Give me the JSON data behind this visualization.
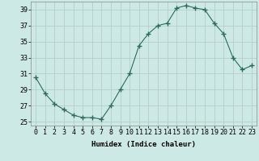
{
  "x": [
    0,
    1,
    2,
    3,
    4,
    5,
    6,
    7,
    8,
    9,
    10,
    11,
    12,
    13,
    14,
    15,
    16,
    17,
    18,
    19,
    20,
    21,
    22,
    23
  ],
  "y": [
    30.5,
    28.5,
    27.2,
    26.5,
    25.8,
    25.5,
    25.5,
    25.3,
    27.0,
    29.0,
    31.0,
    34.5,
    36.0,
    37.0,
    37.3,
    39.2,
    39.5,
    39.2,
    39.0,
    37.3,
    36.0,
    33.0,
    31.5,
    32.0
  ],
  "xlabel": "Humidex (Indice chaleur)",
  "line_color": "#2d6b5e",
  "marker": "+",
  "marker_size": 4,
  "bg_color": "#cce9e5",
  "grid_color": "#b0c8c4",
  "xlim": [
    -0.5,
    23.5
  ],
  "ylim": [
    24.5,
    40.0
  ],
  "yticks": [
    25,
    27,
    29,
    31,
    33,
    35,
    37,
    39
  ],
  "xtick_labels": [
    "0",
    "1",
    "2",
    "3",
    "4",
    "5",
    "6",
    "7",
    "8",
    "9",
    "10",
    "11",
    "12",
    "13",
    "14",
    "15",
    "16",
    "17",
    "18",
    "19",
    "20",
    "21",
    "22",
    "23"
  ],
  "axis_fontsize": 6.5,
  "tick_fontsize": 6.0
}
